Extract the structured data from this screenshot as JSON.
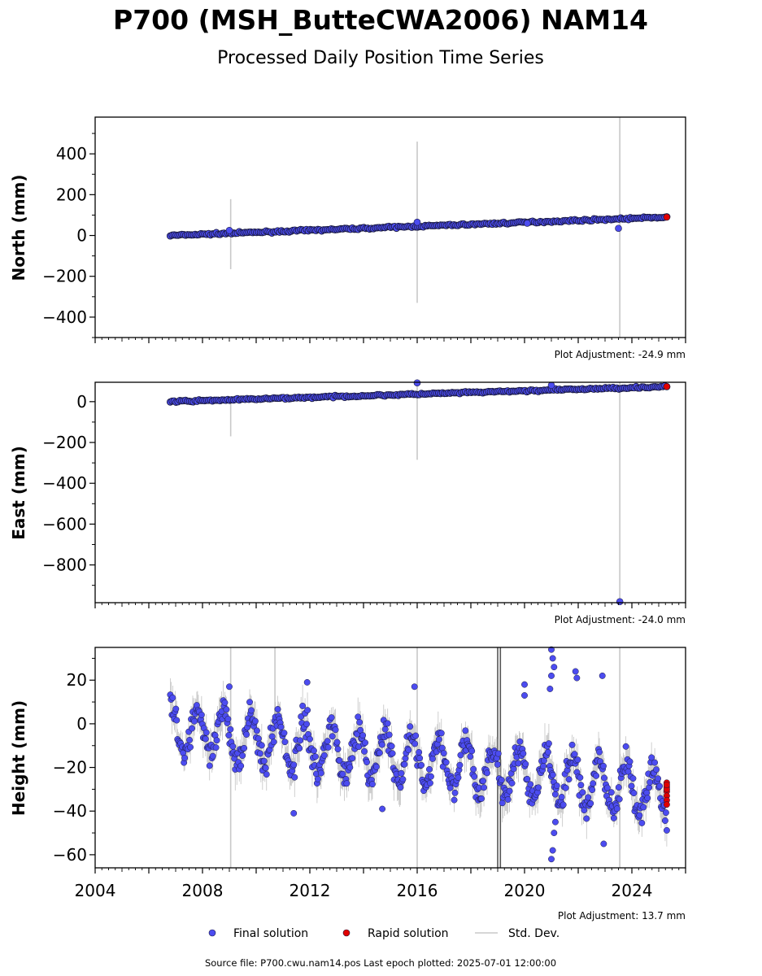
{
  "title": "P700 (MSH_ButteCWA2006) NAM14",
  "subtitle": "Processed Daily Position Time Series",
  "source_line": "Source file: P700.cwu.nam14.pos  Last epoch plotted: 2025-07-01 12:00:00",
  "legend": {
    "final": "Final solution",
    "rapid": "Rapid solution",
    "std": "Std. Dev."
  },
  "colors": {
    "final": "#4c4cf0",
    "rapid": "#e00000",
    "std": "#c8c8c8",
    "edge": "#1a1a40"
  },
  "chart_data": [
    {
      "type": "scatter",
      "ylabel": "North (mm)",
      "adjustment": "Plot Adjustment: -24.9 mm",
      "ylim": [
        -500,
        580
      ],
      "yticks": [
        400,
        200,
        0,
        -200,
        -400
      ],
      "ytick_labels": [
        "400",
        "200",
        "0",
        "−200",
        "−400"
      ],
      "xlim": [
        2004,
        2026
      ],
      "trend": {
        "x": [
          2006.8,
          2025.3
        ],
        "y": [
          0,
          90
        ]
      },
      "rapid_y": [
        90
      ],
      "outliers": [
        {
          "x": 2016.0,
          "y": 65
        },
        {
          "x": 2020.1,
          "y": 60
        },
        {
          "x": 2023.5,
          "y": 35
        },
        {
          "x": 2009.0,
          "y": 25
        }
      ],
      "error_bars": [
        {
          "x": 2009.05,
          "y0": -165,
          "y1": 178
        },
        {
          "x": 2016.0,
          "y0": -330,
          "y1": 460
        },
        {
          "x": 2023.55,
          "y0": -500,
          "y1": 580
        }
      ]
    },
    {
      "type": "scatter",
      "ylabel": "East (mm)",
      "adjustment": "Plot Adjustment: -24.0 mm",
      "ylim": [
        -985,
        95
      ],
      "yticks": [
        0,
        -200,
        -400,
        -600,
        -800
      ],
      "ytick_labels": [
        "0",
        "−200",
        "−400",
        "−600",
        "−800"
      ],
      "xlim": [
        2004,
        2026
      ],
      "trend": {
        "x": [
          2006.8,
          2025.3
        ],
        "y": [
          0,
          74
        ]
      },
      "rapid_y": [
        74
      ],
      "outliers": [
        {
          "x": 2016.0,
          "y": 92
        },
        {
          "x": 2023.55,
          "y": -980
        },
        {
          "x": 2021.0,
          "y": 80
        }
      ],
      "error_bars": [
        {
          "x": 2009.05,
          "y0": -170,
          "y1": 12
        },
        {
          "x": 2016.0,
          "y0": -285,
          "y1": 95
        },
        {
          "x": 2023.55,
          "y0": -985,
          "y1": 95
        }
      ]
    },
    {
      "type": "scatter",
      "ylabel": "Height (mm)",
      "adjustment": "Plot Adjustment: 13.7 mm",
      "ylim": [
        -66,
        35
      ],
      "yticks": [
        20,
        0,
        -20,
        -40,
        -60
      ],
      "ytick_labels": [
        "20",
        "0",
        "−20",
        "−40",
        "−60"
      ],
      "xlim": [
        2004,
        2026
      ],
      "xticks": [
        2004,
        2008,
        2012,
        2016,
        2020,
        2024
      ],
      "xtick_labels": [
        "2004",
        "2008",
        "2012",
        "2016",
        "2020",
        "2024"
      ],
      "start": 2006.8,
      "end": 2025.3,
      "mean_start": -2,
      "mean_end": -32,
      "seasonal_amplitude": 11,
      "rapid_y": [
        -27,
        -29,
        -31,
        -33,
        -35,
        -37,
        -30,
        -28
      ],
      "outliers": [
        {
          "x": 2021.0,
          "y": 34
        },
        {
          "x": 2021.05,
          "y": 30
        },
        {
          "x": 2021.1,
          "y": 26
        },
        {
          "x": 2021.0,
          "y": 22
        },
        {
          "x": 2020.95,
          "y": 16
        },
        {
          "x": 2020.0,
          "y": 18
        },
        {
          "x": 2020.0,
          "y": 13
        },
        {
          "x": 2021.9,
          "y": 24
        },
        {
          "x": 2021.95,
          "y": 21
        },
        {
          "x": 2022.9,
          "y": 22
        },
        {
          "x": 2021.15,
          "y": -45
        },
        {
          "x": 2021.1,
          "y": -50
        },
        {
          "x": 2021.05,
          "y": -58
        },
        {
          "x": 2021.0,
          "y": -62
        },
        {
          "x": 2022.95,
          "y": -55
        },
        {
          "x": 2015.9,
          "y": 17
        },
        {
          "x": 2011.9,
          "y": 19
        },
        {
          "x": 2011.4,
          "y": -41
        },
        {
          "x": 2009.0,
          "y": 17
        },
        {
          "x": 2014.7,
          "y": -39
        }
      ],
      "error_bars": [
        {
          "x": 2009.05,
          "y0": -66,
          "y1": 35
        },
        {
          "x": 2010.7,
          "y0": -10,
          "y1": 35
        },
        {
          "x": 2016.0,
          "y0": -66,
          "y1": 35
        },
        {
          "x": 2019.0,
          "y0": -66,
          "y1": 35
        },
        {
          "x": 2019.1,
          "y0": -66,
          "y1": 35
        },
        {
          "x": 2023.55,
          "y0": -66,
          "y1": 35
        }
      ]
    }
  ]
}
